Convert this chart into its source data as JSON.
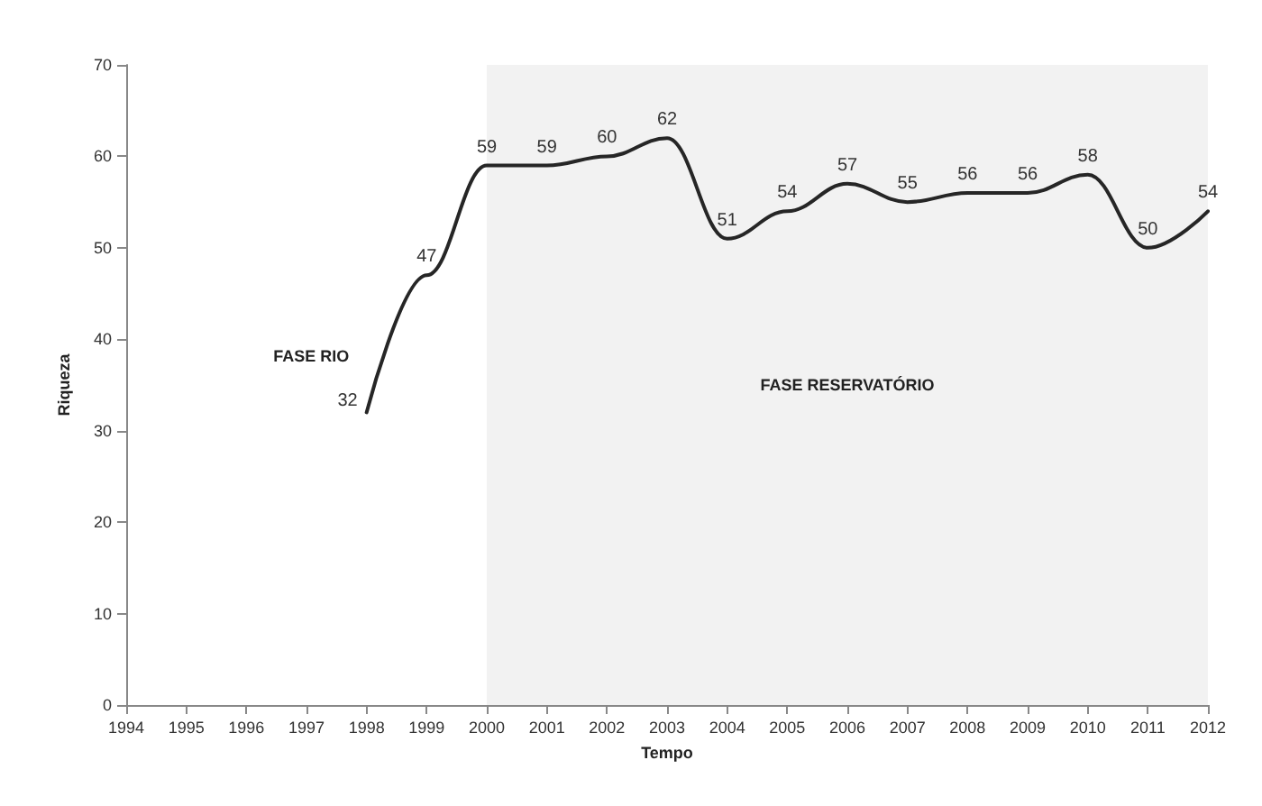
{
  "chart_data": {
    "type": "line",
    "xlabel": "Tempo",
    "ylabel": "Riqueza",
    "x": [
      1998,
      1999,
      2000,
      2001,
      2002,
      2003,
      2004,
      2005,
      2006,
      2007,
      2008,
      2009,
      2010,
      2011,
      2012
    ],
    "series": [
      {
        "color": "#262626",
        "values": [
          32,
          47,
          59,
          59,
          60,
          62,
          51,
          54,
          57,
          55,
          56,
          56,
          58,
          50,
          54
        ]
      }
    ],
    "xlim": [
      1994,
      2012
    ],
    "xticks": [
      1994,
      1995,
      1996,
      1997,
      1998,
      1999,
      2000,
      2001,
      2002,
      2003,
      2004,
      2005,
      2006,
      2007,
      2008,
      2009,
      2010,
      2011,
      2012
    ],
    "ylim": [
      0,
      70
    ],
    "yticks": [
      0,
      10,
      20,
      30,
      40,
      50,
      60,
      70
    ],
    "bands": [
      {
        "axis": "x",
        "from": 2000,
        "to": 2012,
        "label": "FASE RESERVATÓRIO",
        "color": "#f2f2f2"
      }
    ],
    "annotations": [
      "FASE RIO"
    ],
    "data_labels": true,
    "marker": "none",
    "line_style": "solid",
    "grid": false
  }
}
